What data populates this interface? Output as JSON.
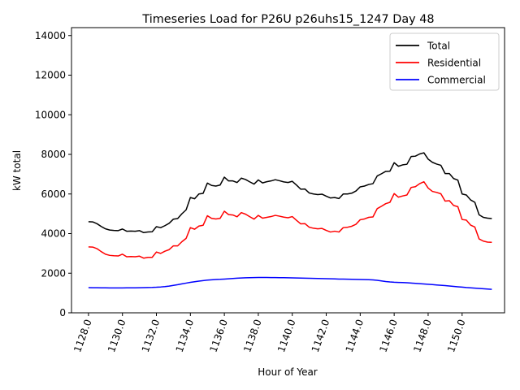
{
  "chart_data": {
    "type": "line",
    "title": "Timeseries Load for P26U p26uhs15_1247  Day 48",
    "xlabel": "Hour of Year",
    "ylabel": "kW total",
    "xlim": [
      1127.0,
      1152.5
    ],
    "ylim": [
      0,
      14400
    ],
    "x_ticks": [
      1128,
      1130,
      1132,
      1134,
      1136,
      1138,
      1140,
      1142,
      1144,
      1146,
      1148,
      1150
    ],
    "x_tick_labels": [
      "1128.0",
      "1130.0",
      "1132.0",
      "1134.0",
      "1136.0",
      "1138.0",
      "1140.0",
      "1142.0",
      "1144.0",
      "1146.0",
      "1148.0",
      "1150.0"
    ],
    "y_ticks": [
      0,
      2000,
      4000,
      6000,
      8000,
      10000,
      12000,
      14000
    ],
    "y_tick_labels": [
      "0",
      "2000",
      "4000",
      "6000",
      "8000",
      "10000",
      "12000",
      "14000"
    ],
    "legend_position": "top-right",
    "x_start": 1128.0,
    "x_step": 0.25,
    "series": [
      {
        "name": "Total",
        "color": "#000000",
        "values": [
          4600,
          4590,
          4500,
          4360,
          4240,
          4180,
          4160,
          4150,
          4230,
          4120,
          4130,
          4120,
          4150,
          4050,
          4080,
          4090,
          4350,
          4300,
          4400,
          4520,
          4730,
          4760,
          5000,
          5200,
          5820,
          5760,
          6000,
          6030,
          6550,
          6430,
          6400,
          6450,
          6850,
          6660,
          6660,
          6580,
          6800,
          6730,
          6610,
          6500,
          6710,
          6560,
          6620,
          6660,
          6720,
          6670,
          6610,
          6580,
          6640,
          6450,
          6240,
          6250,
          6050,
          6000,
          5970,
          5990,
          5890,
          5800,
          5820,
          5770,
          6000,
          6000,
          6040,
          6150,
          6360,
          6400,
          6480,
          6520,
          6910,
          7020,
          7140,
          7150,
          7580,
          7400,
          7470,
          7500,
          7890,
          7910,
          8020,
          8080,
          7760,
          7600,
          7510,
          7450,
          7030,
          7030,
          6780,
          6700,
          6000,
          5950,
          5700,
          5580,
          4950,
          4820,
          4780,
          4760
        ]
      },
      {
        "name": "Residential",
        "color": "#ff0000",
        "values": [
          3330,
          3320,
          3240,
          3090,
          2960,
          2900,
          2880,
          2870,
          2960,
          2830,
          2840,
          2830,
          2860,
          2760,
          2800,
          2800,
          3070,
          3000,
          3110,
          3190,
          3380,
          3380,
          3590,
          3760,
          4300,
          4220,
          4380,
          4420,
          4900,
          4770,
          4740,
          4770,
          5130,
          4960,
          4940,
          4850,
          5060,
          4980,
          4850,
          4730,
          4920,
          4780,
          4820,
          4860,
          4920,
          4880,
          4830,
          4800,
          4860,
          4670,
          4490,
          4500,
          4320,
          4270,
          4240,
          4260,
          4160,
          4080,
          4120,
          4080,
          4300,
          4320,
          4370,
          4470,
          4700,
          4740,
          4820,
          4840,
          5260,
          5380,
          5510,
          5580,
          6020,
          5840,
          5900,
          5950,
          6330,
          6370,
          6520,
          6620,
          6300,
          6130,
          6080,
          6010,
          5640,
          5660,
          5420,
          5360,
          4710,
          4680,
          4430,
          4330,
          3730,
          3620,
          3570,
          3560
        ]
      },
      {
        "name": "Commercial",
        "color": "#0000ff",
        "values": [
          1270,
          1268,
          1265,
          1262,
          1260,
          1258,
          1257,
          1257,
          1258,
          1259,
          1260,
          1262,
          1265,
          1270,
          1275,
          1280,
          1290,
          1305,
          1325,
          1350,
          1385,
          1420,
          1460,
          1500,
          1540,
          1570,
          1600,
          1625,
          1650,
          1665,
          1680,
          1690,
          1705,
          1720,
          1735,
          1750,
          1760,
          1770,
          1775,
          1780,
          1782,
          1783,
          1782,
          1780,
          1778,
          1775,
          1772,
          1770,
          1765,
          1760,
          1755,
          1750,
          1745,
          1740,
          1735,
          1730,
          1725,
          1718,
          1712,
          1705,
          1700,
          1695,
          1690,
          1685,
          1680,
          1675,
          1670,
          1660,
          1640,
          1610,
          1580,
          1560,
          1545,
          1535,
          1528,
          1520,
          1505,
          1485,
          1470,
          1455,
          1440,
          1425,
          1405,
          1390,
          1375,
          1355,
          1335,
          1315,
          1295,
          1275,
          1260,
          1245,
          1230,
          1215,
          1200,
          1185
        ]
      }
    ]
  }
}
